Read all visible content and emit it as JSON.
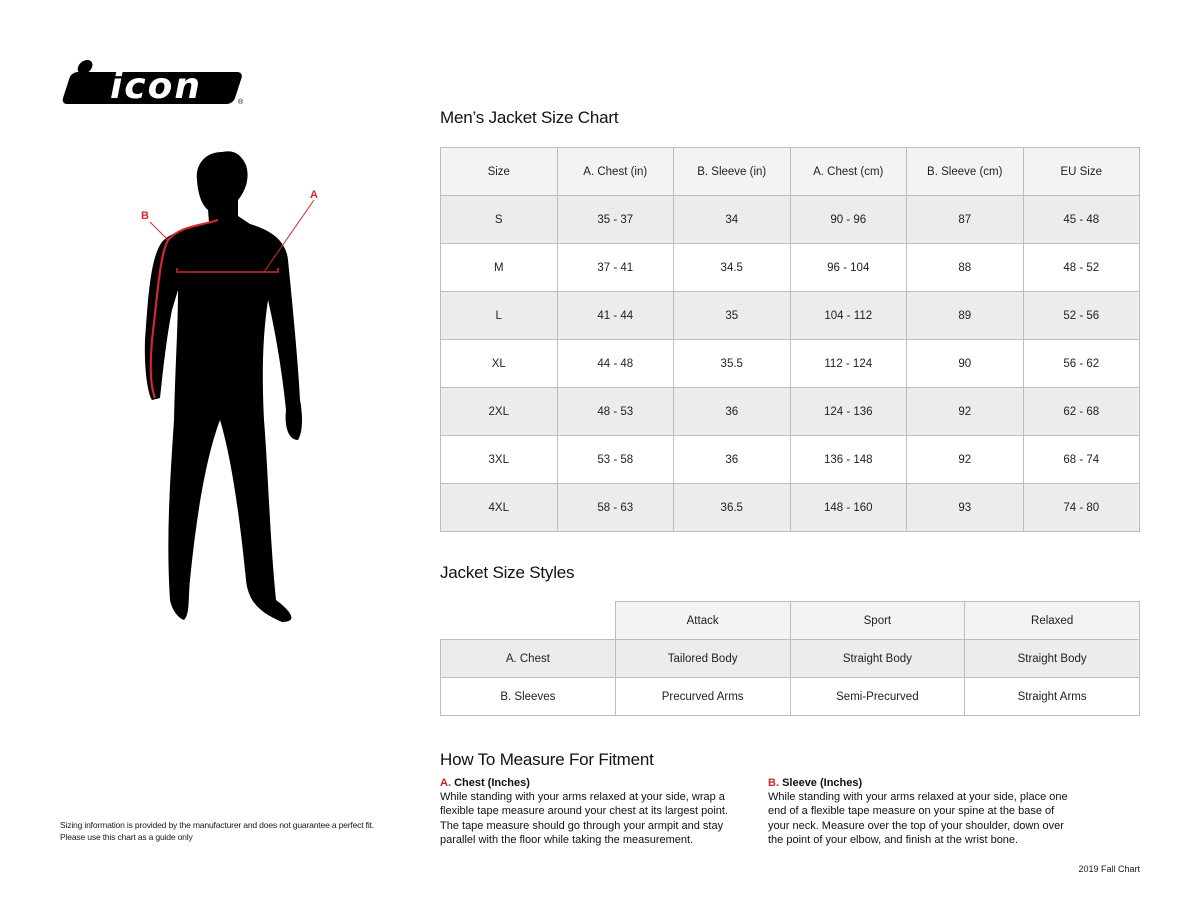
{
  "logo": {
    "text": "icon",
    "mark": "®"
  },
  "figure": {
    "label_a": "A",
    "label_b": "B"
  },
  "size_chart": {
    "title": "Men’s Jacket Size Chart",
    "headers": [
      "Size",
      "A. Chest (in)",
      "B. Sleeve (in)",
      "A. Chest (cm)",
      "B. Sleeve (cm)",
      "EU Size"
    ],
    "rows": [
      [
        "S",
        "35 - 37",
        "34",
        "90 - 96",
        "87",
        "45 - 48"
      ],
      [
        "M",
        "37 - 41",
        "34.5",
        "96 - 104",
        "88",
        "48 - 52"
      ],
      [
        "L",
        "41 - 44",
        "35",
        "104 - 112",
        "89",
        "52 - 56"
      ],
      [
        "XL",
        "44 - 48",
        "35.5",
        "112 - 124",
        "90",
        "56 - 62"
      ],
      [
        "2XL",
        "48 - 53",
        "36",
        "124 - 136",
        "92",
        "62 - 68"
      ],
      [
        "3XL",
        "53 - 58",
        "36",
        "136 - 148",
        "92",
        "68 - 74"
      ],
      [
        "4XL",
        "58 - 63",
        "36.5",
        "148 - 160",
        "93",
        "74 - 80"
      ]
    ]
  },
  "styles": {
    "title": "Jacket Size Styles",
    "headers": [
      "",
      "Attack",
      "Sport",
      "Relaxed"
    ],
    "rows": [
      [
        "A. Chest",
        "Tailored Body",
        "Straight Body",
        "Straight Body"
      ],
      [
        "B. Sleeves",
        "Precurved Arms",
        "Semi-Precurved",
        "Straight Arms"
      ]
    ]
  },
  "measure": {
    "title": "How To Measure For Fitment",
    "chest": {
      "letter": "A.",
      "heading": "Chest (Inches)",
      "lines": [
        "While standing with your arms relaxed at your side, wrap a",
        "flexible tape measure around your chest at its largest point.",
        "The tape measure should go through your armpit and stay",
        "parallel with the floor while taking the measurement."
      ]
    },
    "sleeve": {
      "letter": "B.",
      "heading": "Sleeve (Inches)",
      "lines": [
        "While standing with your arms relaxed at your side, place one",
        "end of a flexible tape measure on your spine at the base of",
        "your neck. Measure over the top of your shoulder, down over",
        "the point of your elbow, and finish at the wrist bone."
      ]
    }
  },
  "disclaimer": [
    "Sizing information is provided by the manufacturer and does not guarantee a perfect fit.",
    "Please use this chart as a guide only"
  ],
  "footer": "2019 Fall Chart",
  "colors": {
    "accent": "#c0272d",
    "row_shade": "#ececec",
    "border": "#bdbdbd"
  }
}
